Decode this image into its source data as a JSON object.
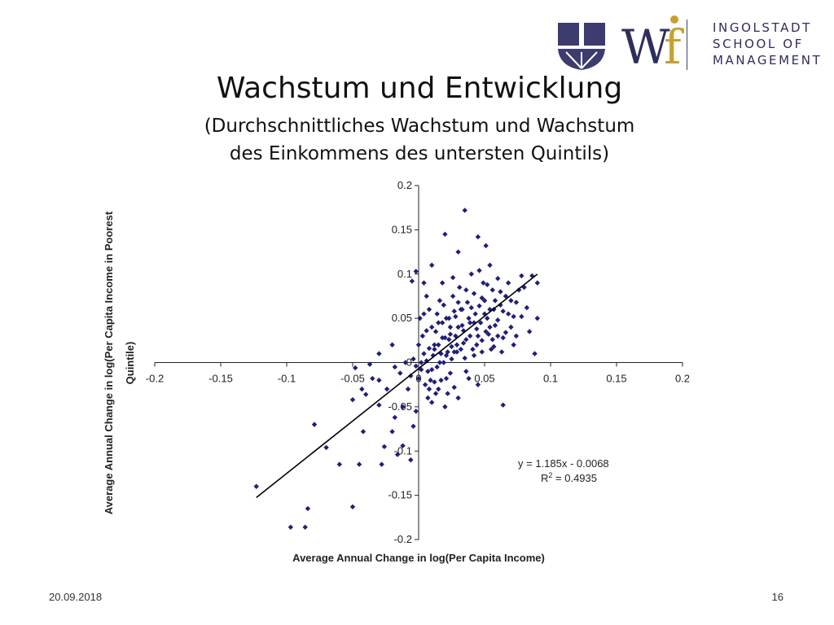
{
  "header": {
    "logo_lines": [
      "INGOLSTADT",
      "SCHOOL OF",
      "MANAGEMENT"
    ],
    "title": "Wachstum und Entwicklung",
    "subtitle_line1": "(Durchschnittliches Wachstum und Wachstum",
    "subtitle_line2": "des Einkommens des untersten Quintils)"
  },
  "footer": {
    "date": "20.09.2018",
    "page": "16"
  },
  "colors": {
    "points": "#1f1f7a",
    "logo": "#2e2e5e",
    "line": "#000000"
  },
  "chart_data": {
    "type": "scatter",
    "xlabel": "Average Annual Change in log(Per Capita Income)",
    "ylabel_lines": [
      "Average Annual Change in log(Per Capita Income in Poorest",
      "Quintile)"
    ],
    "xlim": [
      -0.2,
      0.2
    ],
    "ylim": [
      -0.2,
      0.2
    ],
    "x_ticks": [
      "-0.2",
      "-0.15",
      "-0.1",
      "-0.05",
      "0",
      "0.05",
      "0.1",
      "0.15",
      "0.2"
    ],
    "y_ticks": [
      "0.2",
      "0.15",
      "0.1",
      "0.05",
      "0",
      "-0.05",
      "-0.1",
      "-0.15",
      "-0.2"
    ],
    "trendline": {
      "slope": 1.185,
      "intercept": -0.0068,
      "x_range": [
        -0.123,
        0.09
      ]
    },
    "equation": "y = 1.185x - 0.0068",
    "r2_label": "R",
    "r2_sup": "2",
    "r2_value": " = 0.4935",
    "points": [
      [
        -0.123,
        -0.14
      ],
      [
        -0.097,
        -0.186
      ],
      [
        -0.086,
        -0.186
      ],
      [
        -0.084,
        -0.165
      ],
      [
        -0.079,
        -0.07
      ],
      [
        -0.07,
        -0.096
      ],
      [
        -0.06,
        -0.115
      ],
      [
        -0.05,
        -0.163
      ],
      [
        -0.045,
        -0.115
      ],
      [
        -0.028,
        -0.115
      ],
      [
        -0.05,
        -0.042
      ],
      [
        -0.042,
        -0.078
      ],
      [
        -0.04,
        -0.036
      ],
      [
        -0.03,
        -0.048
      ],
      [
        -0.026,
        -0.095
      ],
      [
        -0.02,
        -0.078
      ],
      [
        -0.016,
        -0.104
      ],
      [
        -0.012,
        -0.094
      ],
      [
        -0.006,
        -0.11
      ],
      [
        -0.004,
        -0.072
      ],
      [
        -0.002,
        -0.055
      ],
      [
        -0.018,
        -0.062
      ],
      [
        -0.012,
        -0.05
      ],
      [
        -0.008,
        -0.03
      ],
      [
        -0.03,
        -0.02
      ],
      [
        -0.024,
        -0.03
      ],
      [
        -0.018,
        -0.005
      ],
      [
        -0.014,
        -0.012
      ],
      [
        -0.01,
        0.0
      ],
      [
        -0.006,
        -0.015
      ],
      [
        -0.004,
        0.004
      ],
      [
        -0.002,
        -0.004
      ],
      [
        0.0,
        -0.018
      ],
      [
        0.002,
        -0.008
      ],
      [
        -0.037,
        -0.002
      ],
      [
        -0.043,
        -0.03
      ],
      [
        -0.048,
        -0.006
      ],
      [
        -0.035,
        -0.018
      ],
      [
        -0.02,
        0.02
      ],
      [
        -0.03,
        0.01
      ],
      [
        -0.005,
        0.092
      ],
      [
        -0.002,
        0.103
      ],
      [
        0.004,
        0.09
      ],
      [
        0.001,
        0.05
      ],
      [
        0.003,
        0.03
      ],
      [
        0.004,
        0.01
      ],
      [
        0.006,
        0.002
      ],
      [
        0.007,
        -0.01
      ],
      [
        0.008,
        -0.03
      ],
      [
        0.01,
        -0.045
      ],
      [
        0.012,
        0.015
      ],
      [
        0.013,
        0.035
      ],
      [
        0.014,
        0.055
      ],
      [
        0.015,
        0.02
      ],
      [
        0.016,
        0.0
      ],
      [
        0.017,
        -0.02
      ],
      [
        0.018,
        0.045
      ],
      [
        0.019,
        0.065
      ],
      [
        0.02,
        0.028
      ],
      [
        0.021,
        0.008
      ],
      [
        0.022,
        -0.035
      ],
      [
        0.023,
        0.05
      ],
      [
        0.024,
        0.04
      ],
      [
        0.025,
        0.018
      ],
      [
        0.026,
        0.075
      ],
      [
        0.027,
        0.058
      ],
      [
        0.028,
        0.03
      ],
      [
        0.029,
        0.012
      ],
      [
        0.03,
        -0.04
      ],
      [
        0.031,
        0.085
      ],
      [
        0.032,
        0.06
      ],
      [
        0.033,
        0.042
      ],
      [
        0.034,
        0.022
      ],
      [
        0.035,
        0.005
      ],
      [
        0.036,
        -0.01
      ],
      [
        0.037,
        0.068
      ],
      [
        0.038,
        0.05
      ],
      [
        0.039,
        0.03
      ],
      [
        0.04,
        0.1
      ],
      [
        0.041,
        0.015
      ],
      [
        0.042,
        0.078
      ],
      [
        0.043,
        0.055
      ],
      [
        0.044,
        0.038
      ],
      [
        0.045,
        -0.025
      ],
      [
        0.046,
        0.064
      ],
      [
        0.047,
        0.045
      ],
      [
        0.048,
        0.025
      ],
      [
        0.049,
        0.09
      ],
      [
        0.05,
        0.07
      ],
      [
        0.051,
        0.132
      ],
      [
        0.052,
        0.05
      ],
      [
        0.053,
        0.032
      ],
      [
        0.054,
        0.11
      ],
      [
        0.055,
        0.015
      ],
      [
        0.056,
        0.082
      ],
      [
        0.057,
        0.06
      ],
      [
        0.058,
        0.042
      ],
      [
        0.06,
        0.095
      ],
      [
        0.062,
        0.065
      ],
      [
        0.064,
        0.028
      ],
      [
        0.066,
        0.075
      ],
      [
        0.068,
        0.055
      ],
      [
        0.07,
        0.04
      ],
      [
        0.072,
        0.02
      ],
      [
        0.074,
        0.068
      ],
      [
        0.078,
        0.052
      ],
      [
        0.08,
        0.085
      ],
      [
        0.082,
        0.062
      ],
      [
        0.084,
        0.035
      ],
      [
        0.086,
        0.098
      ],
      [
        0.088,
        0.01
      ],
      [
        0.09,
        0.05
      ],
      [
        0.09,
        0.09
      ],
      [
        0.078,
        0.098
      ],
      [
        0.064,
        -0.048
      ],
      [
        0.035,
        0.172
      ],
      [
        0.045,
        0.142
      ],
      [
        0.02,
        0.145
      ],
      [
        0.03,
        0.125
      ],
      [
        0.01,
        0.11
      ],
      [
        0.006,
        0.075
      ],
      [
        0.008,
        0.06
      ],
      [
        0.01,
        0.04
      ],
      [
        0.012,
        0.02
      ],
      [
        0.014,
        -0.005
      ],
      [
        0.016,
        0.07
      ],
      [
        0.018,
        0.09
      ],
      [
        0.02,
        -0.05
      ],
      [
        0.022,
        0.012
      ],
      [
        0.024,
        -0.012
      ],
      [
        0.026,
        0.096
      ],
      [
        0.028,
        0.052
      ],
      [
        0.03,
        0.068
      ],
      [
        0.032,
        0.015
      ],
      [
        0.034,
        0.036
      ],
      [
        0.036,
        0.082
      ],
      [
        0.038,
        -0.018
      ],
      [
        0.04,
        0.062
      ],
      [
        0.042,
        0.045
      ],
      [
        0.044,
        0.02
      ],
      [
        0.046,
        0.104
      ],
      [
        0.048,
        0.073
      ],
      [
        0.05,
        0.055
      ],
      [
        0.052,
        0.088
      ],
      [
        0.054,
        0.04
      ],
      [
        0.056,
        0.026
      ],
      [
        0.058,
        0.07
      ],
      [
        0.06,
        0.048
      ],
      [
        0.062,
        0.08
      ],
      [
        0.064,
        0.058
      ],
      [
        0.066,
        0.034
      ],
      [
        0.068,
        0.09
      ],
      [
        0.07,
        0.07
      ],
      [
        0.072,
        0.052
      ],
      [
        0.074,
        0.03
      ],
      [
        0.076,
        0.082
      ],
      [
        0.004,
        0.055
      ],
      [
        0.006,
        0.036
      ],
      [
        0.008,
        0.016
      ],
      [
        0.01,
        -0.008
      ],
      [
        0.012,
        -0.022
      ],
      [
        0.015,
        0.045
      ],
      [
        0.018,
        0.028
      ],
      [
        0.021,
        0.05
      ],
      [
        0.024,
        0.032
      ],
      [
        0.027,
        0.012
      ],
      [
        0.03,
        0.04
      ],
      [
        0.033,
        0.06
      ],
      [
        0.036,
        0.026
      ],
      [
        0.039,
        0.045
      ],
      [
        0.042,
        0.008
      ],
      [
        0.045,
        0.03
      ],
      [
        0.048,
        0.012
      ],
      [
        0.051,
        0.035
      ],
      [
        0.054,
        0.06
      ],
      [
        0.057,
        0.018
      ],
      [
        0.06,
        0.03
      ],
      [
        0.063,
        0.012
      ],
      [
        0.0,
        0.02
      ],
      [
        0.002,
        0.0
      ],
      [
        0.005,
        -0.025
      ],
      [
        0.007,
        -0.04
      ],
      [
        0.009,
        -0.02
      ],
      [
        0.011,
        0.008
      ],
      [
        0.013,
        -0.035
      ],
      [
        0.015,
        -0.03
      ],
      [
        0.017,
        0.01
      ],
      [
        0.019,
        0.0
      ],
      [
        0.021,
        -0.018
      ],
      [
        0.023,
        0.026
      ],
      [
        0.025,
        0.004
      ],
      [
        0.027,
        -0.028
      ],
      [
        0.029,
        0.02
      ]
    ]
  }
}
